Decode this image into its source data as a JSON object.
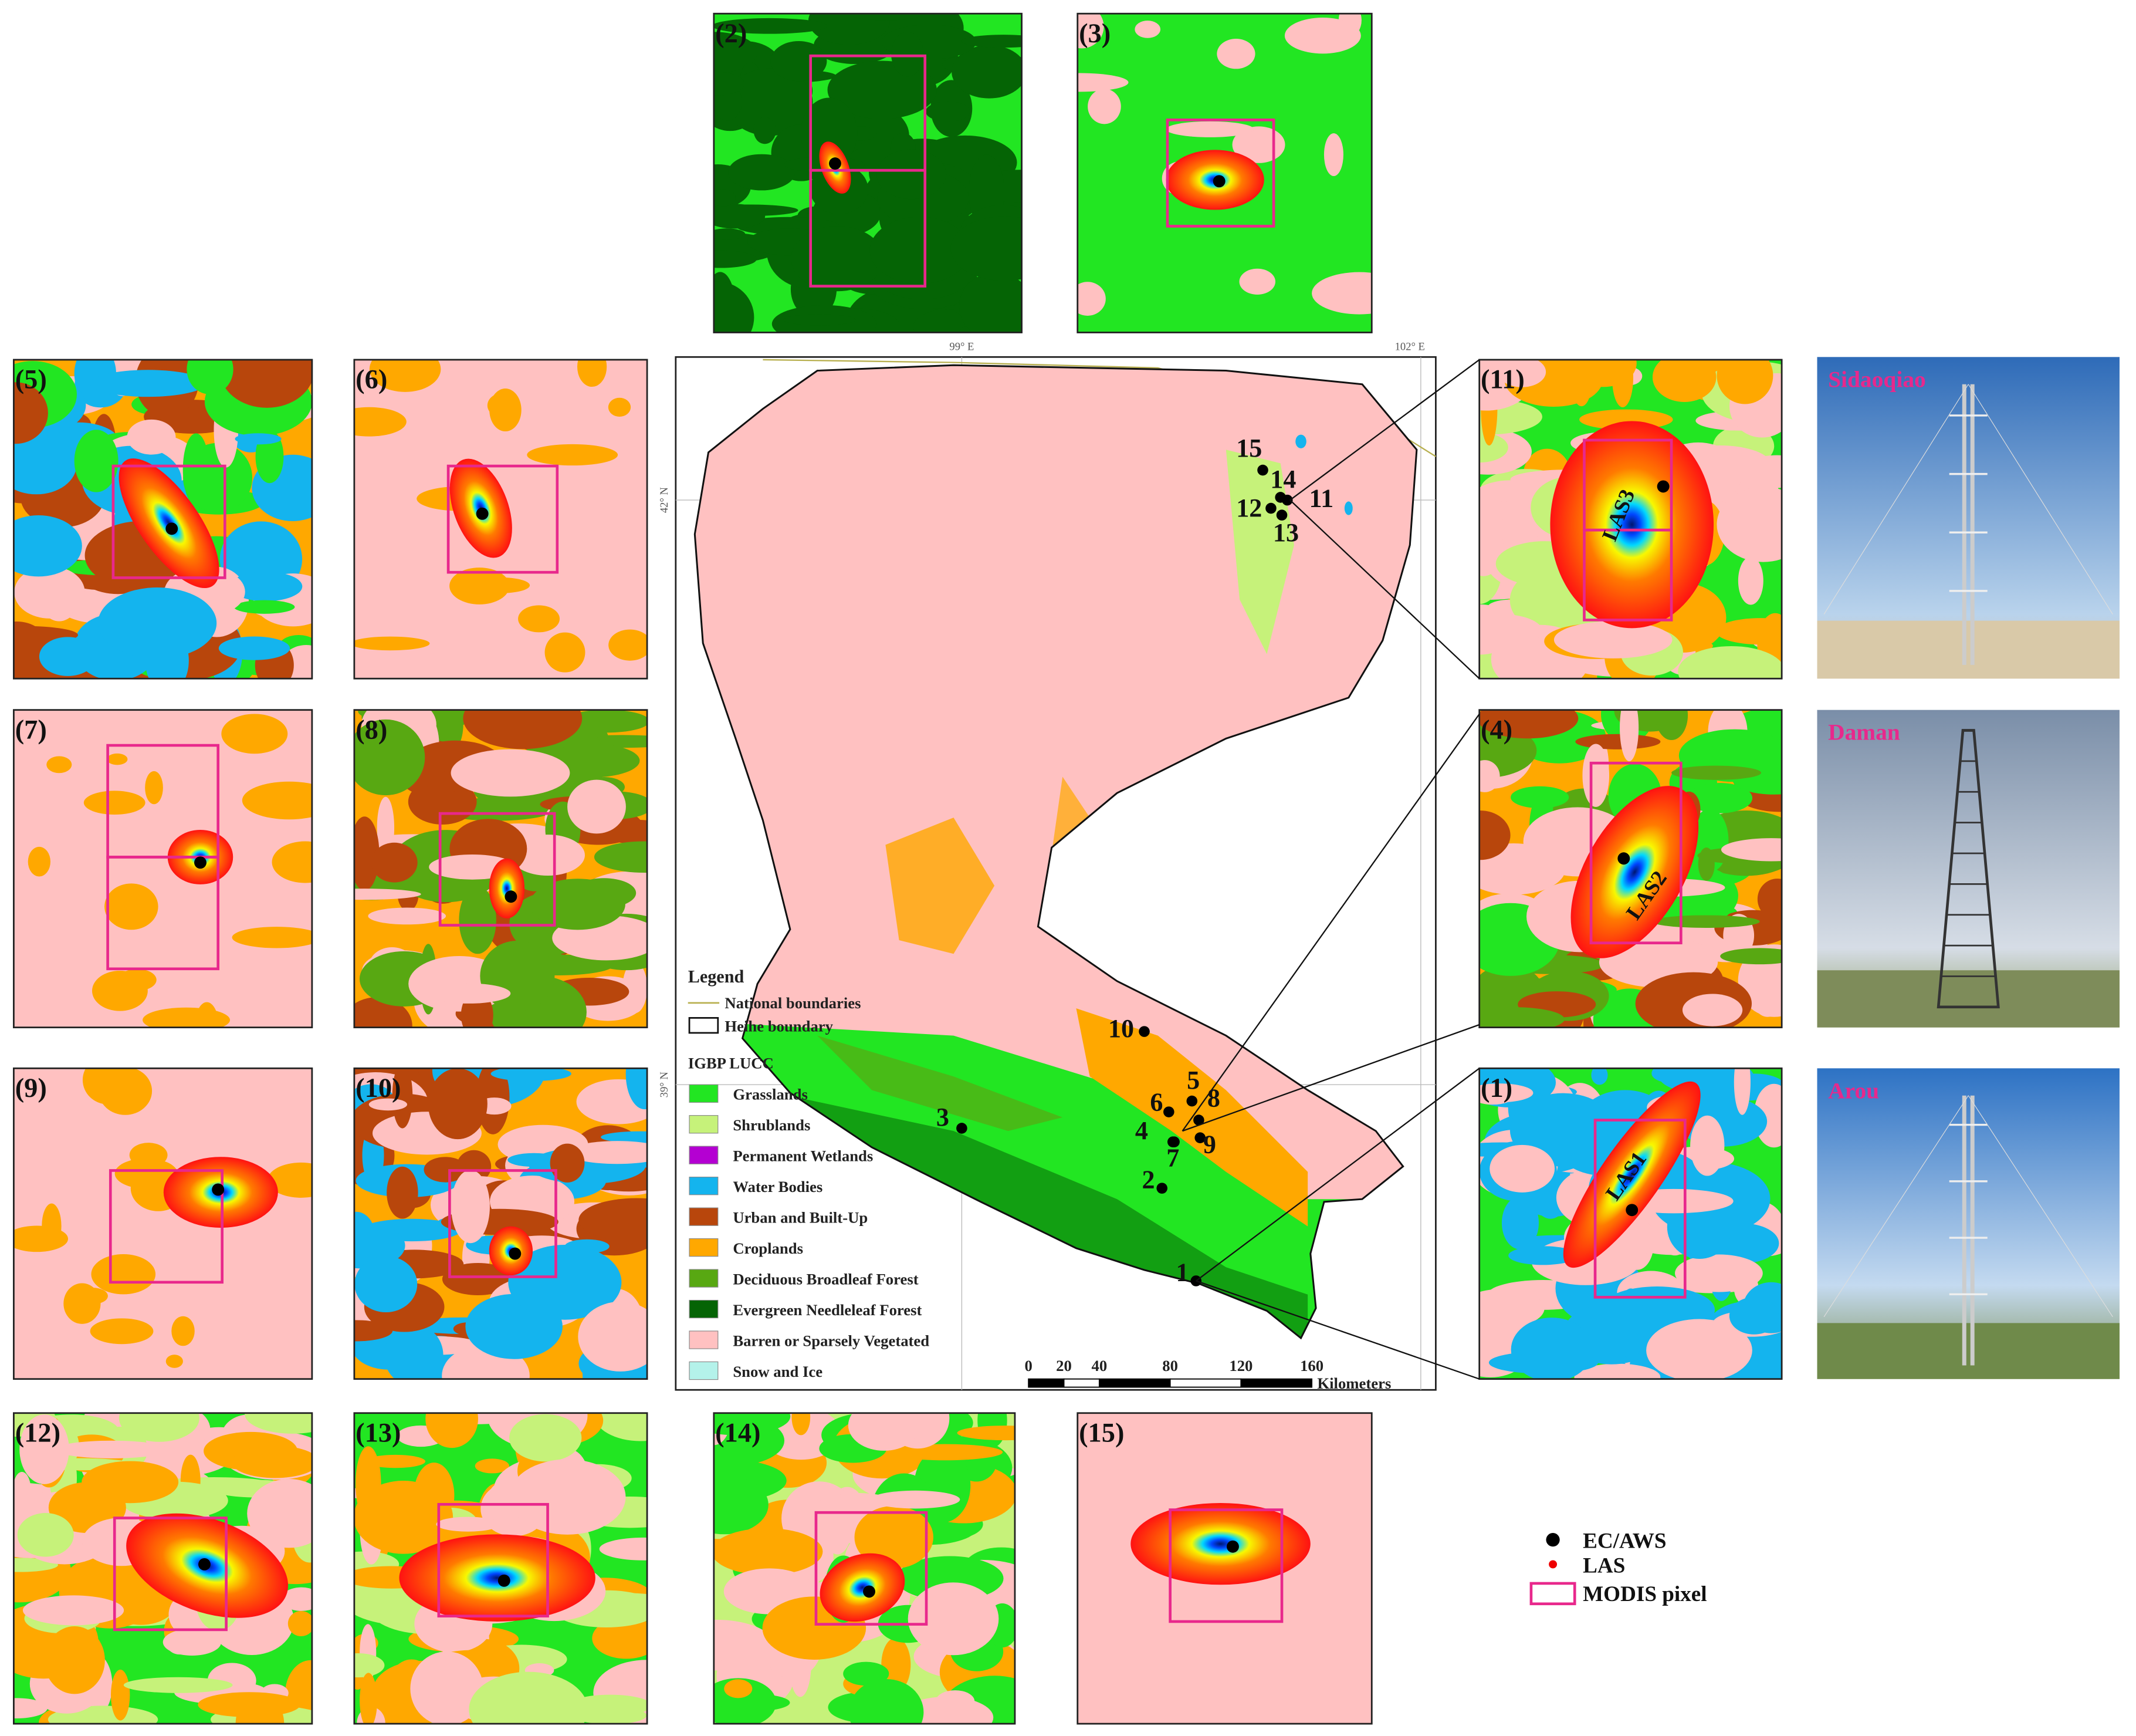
{
  "panel_labels": [
    "(1)",
    "(2)",
    "(3)",
    "(4)",
    "(5)",
    "(6)",
    "(7)",
    "(8)",
    "(9)",
    "(10)",
    "(11)",
    "(12)",
    "(13)",
    "(14)",
    "(15)"
  ],
  "footprint_labels": [
    "LAS1",
    "LAS2",
    "LAS3"
  ],
  "photos": [
    "Sidaoqiao",
    "Daman",
    "Arou"
  ],
  "map": {
    "graticule": [
      "99° E",
      "102° E",
      "42° N",
      "39° N"
    ],
    "sites": [
      "1",
      "2",
      "3",
      "4",
      "5",
      "6",
      "7",
      "8",
      "9",
      "10",
      "11",
      "12",
      "13",
      "14",
      "15"
    ],
    "legend": {
      "title": "Legend",
      "lines": [
        "National boundaries",
        "Heihe boundary"
      ],
      "lucc_title": "IGBP LUCC",
      "classes": [
        {
          "name": "Grasslands",
          "color": "#22e622"
        },
        {
          "name": "Shrublands",
          "color": "#c6f27a"
        },
        {
          "name": "Permanent Wetlands",
          "color": "#b400d2"
        },
        {
          "name": "Water Bodies",
          "color": "#14b4ee"
        },
        {
          "name": "Urban and Built-Up",
          "color": "#b8460c"
        },
        {
          "name": "Croplands",
          "color": "#ffa800"
        },
        {
          "name": "Deciduous Broadleaf Forest",
          "color": "#58a812"
        },
        {
          "name": "Evergreen Needleleaf Forest",
          "color": "#056405"
        },
        {
          "name": "Barren or Sparsely Vegetated",
          "color": "#ffc1c1"
        },
        {
          "name": "Snow and Ice",
          "color": "#b4f2ea"
        }
      ]
    },
    "scale": {
      "ticks": [
        0,
        20,
        40,
        80,
        120,
        160
      ],
      "unit": "Kilometers"
    }
  },
  "key": [
    "EC/AWS",
    "LAS",
    "MODIS pixel"
  ]
}
